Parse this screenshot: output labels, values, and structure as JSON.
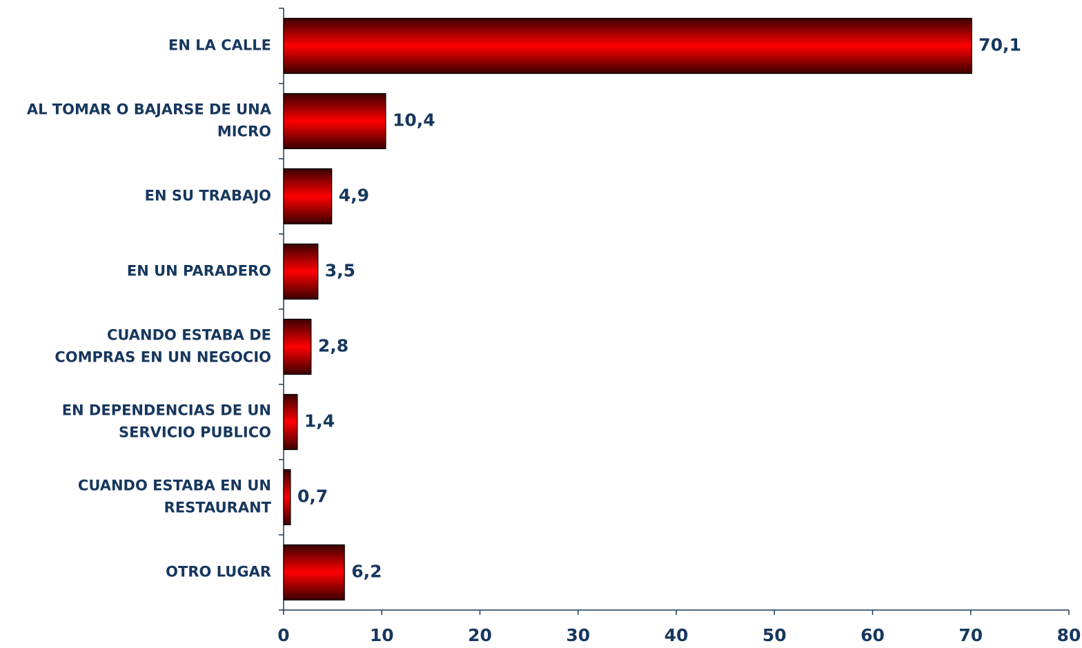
{
  "chart_data": {
    "type": "barh",
    "categories": [
      "EN LA CALLE",
      "AL TOMAR O BAJARSE DE UNA\nMICRO",
      "EN SU TRABAJO",
      "EN UN PARADERO",
      "CUANDO ESTABA DE\nCOMPRAS EN UN NEGOCIO",
      "EN DEPENDENCIAS DE UN\nSERVICIO PUBLICO",
      "CUANDO ESTABA EN UN\nRESTAURANT",
      "OTRO LUGAR"
    ],
    "values": [
      70.1,
      10.4,
      4.9,
      3.5,
      2.8,
      1.4,
      0.7,
      6.2
    ],
    "value_labels": [
      "70,1",
      "10,4",
      "4,9",
      "3,5",
      "2,8",
      "1,4",
      "0,7",
      "6,2"
    ],
    "color": "#ff0000",
    "xlim": [
      0,
      80
    ],
    "xticks": [
      0,
      10,
      20,
      30,
      40,
      50,
      60,
      70,
      80
    ]
  }
}
